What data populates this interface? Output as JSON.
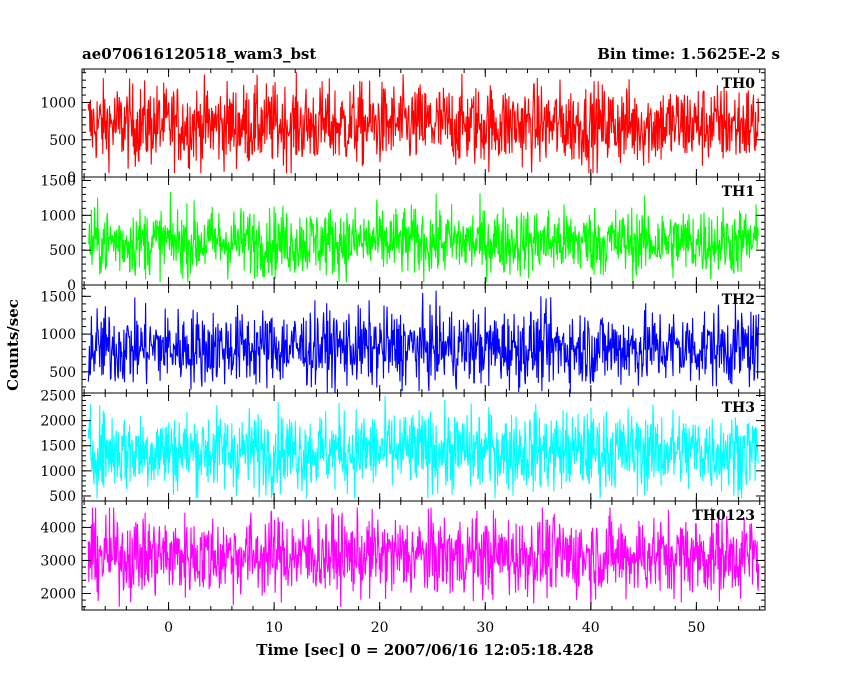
{
  "header": {
    "title": "ae070616120518_wam3_bst",
    "bin_time": "Bin time: 1.5625E-2 s"
  },
  "chart_data": {
    "type": "line",
    "title": "ae070616120518_wam3_bst",
    "subtitle": "Bin time: 1.5625E-2 s",
    "xlabel": "Time [sec] 0 = 2007/06/16 12:05:18.428",
    "ylabel": "Counts/sec",
    "xlim": [
      -8.2,
      56.5
    ],
    "x_ticks": [
      0,
      10,
      20,
      30,
      40,
      50
    ],
    "panels": [
      {
        "name": "TH0",
        "color": "#ff0000",
        "ylim": [
          0,
          1450
        ],
        "y_ticks": [
          0,
          500,
          1000
        ],
        "series_summary": {
          "x_range": [
            -7.6,
            55.9
          ],
          "mean": 700,
          "min": 50,
          "max": 1450
        }
      },
      {
        "name": "TH1",
        "color": "#00ff00",
        "ylim": [
          0,
          1550
        ],
        "y_ticks": [
          0,
          500,
          1000,
          1500
        ],
        "series_summary": {
          "x_range": [
            -7.6,
            55.9
          ],
          "mean": 620,
          "min": 40,
          "max": 1550
        }
      },
      {
        "name": "TH2",
        "color": "#0000ff",
        "ylim": [
          220,
          1650
        ],
        "y_ticks": [
          500,
          1000,
          1500
        ],
        "series_summary": {
          "x_range": [
            -7.6,
            55.9
          ],
          "mean": 820,
          "min": 220,
          "max": 1650
        }
      },
      {
        "name": "TH3",
        "color": "#00ffff",
        "ylim": [
          400,
          2550
        ],
        "y_ticks": [
          500,
          1000,
          1500,
          2000,
          2500
        ],
        "series_summary": {
          "x_range": [
            -7.6,
            55.9
          ],
          "mean": 1400,
          "min": 450,
          "max": 2550
        }
      },
      {
        "name": "TH0123",
        "color": "#ff00ff",
        "ylim": [
          1500,
          4800
        ],
        "y_ticks": [
          2000,
          3000,
          4000
        ],
        "series_summary": {
          "x_range": [
            -7.6,
            55.9
          ],
          "mean": 3150,
          "min": 1600,
          "max": 4600
        }
      }
    ],
    "grid": false,
    "legend": "none"
  }
}
